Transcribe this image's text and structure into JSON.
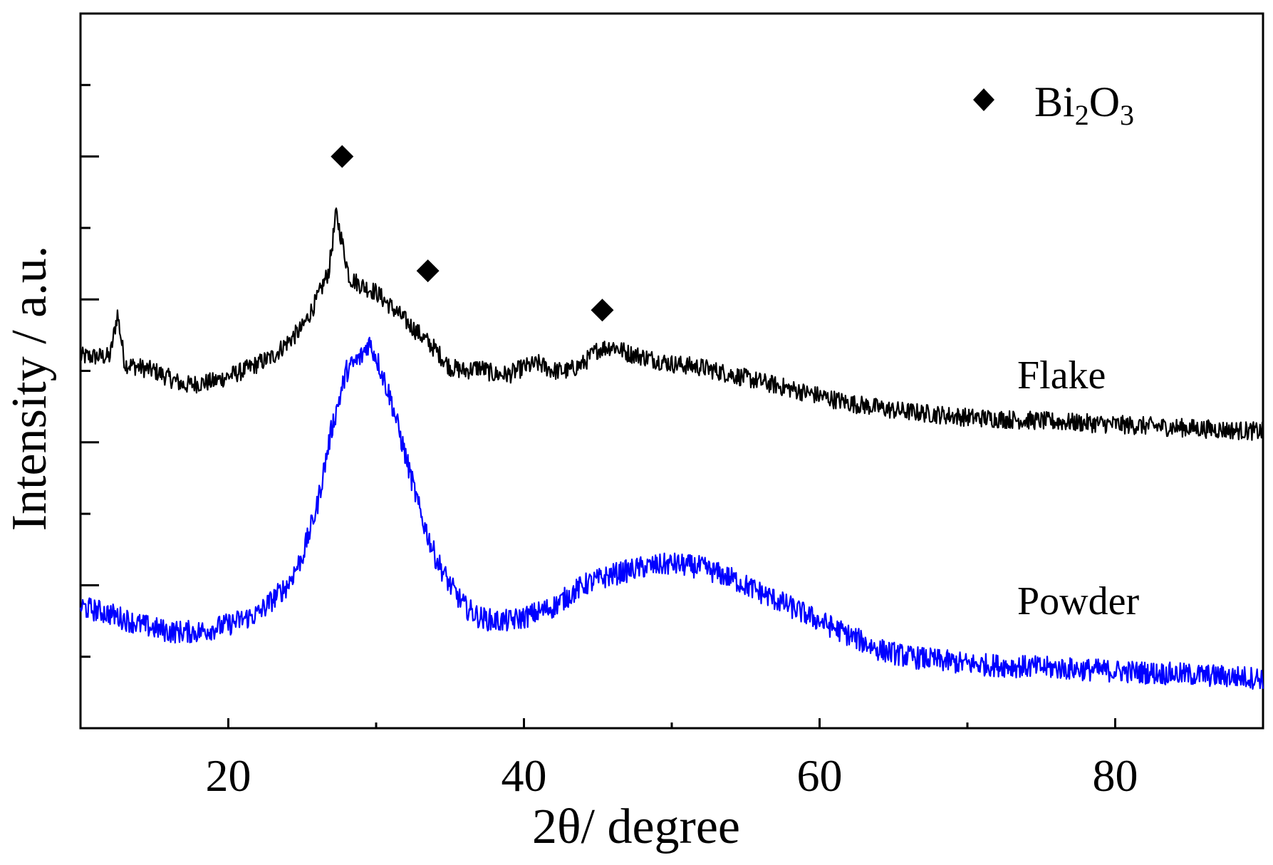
{
  "chart_data": {
    "type": "line",
    "title": "",
    "xlabel": "2θ/ degree",
    "ylabel": "Intensity / a.u.",
    "xlim": [
      10,
      90
    ],
    "ylim": [
      0,
      100
    ],
    "xticks": [
      20,
      40,
      60,
      80
    ],
    "xtick_labels": [
      "20",
      "40",
      "60",
      "80"
    ],
    "y_tick_labels_shown": false,
    "grid": false,
    "legend": {
      "placement": "top-right",
      "marker": "diamond",
      "label_main": "Bi",
      "label_sub1": "2",
      "label_mid": "O",
      "label_sub2": "3"
    },
    "series": [
      {
        "name": "Flake",
        "color": "#000000",
        "x": [
          10,
          12,
          12.5,
          13,
          15,
          17,
          19,
          21,
          23,
          25,
          26,
          26.8,
          27.3,
          27.7,
          28.2,
          29,
          30,
          31,
          32,
          33,
          34,
          35,
          36,
          37,
          38,
          39,
          40,
          41,
          42,
          43,
          44,
          45,
          46,
          47,
          48,
          50,
          52,
          54,
          56,
          58,
          60,
          62,
          65,
          70,
          75,
          80,
          85,
          90
        ],
        "values": [
          52,
          52,
          58,
          51,
          50,
          48,
          48.5,
          50,
          52,
          56,
          60,
          64,
          72,
          68,
          63,
          62,
          61,
          59,
          57,
          55,
          53,
          50.5,
          50,
          50.5,
          49.5,
          49.5,
          50.5,
          51,
          50,
          50,
          51,
          53,
          53.5,
          52.5,
          52,
          51,
          50.5,
          49.5,
          48.5,
          47.5,
          46.5,
          45.5,
          44.5,
          43.5,
          43,
          42.5,
          42,
          41.5
        ]
      },
      {
        "name": "Powder",
        "color": "#0000ff",
        "x": [
          10,
          12,
          14,
          16,
          18,
          20,
          22,
          24,
          25,
          26,
          27,
          28,
          29,
          29.5,
          30,
          31,
          32,
          33,
          34,
          35,
          36,
          37,
          38,
          39,
          40,
          42,
          44,
          46,
          48,
          50,
          52,
          54,
          56,
          58,
          60,
          62,
          64,
          66,
          68,
          70,
          75,
          80,
          85,
          90
        ],
        "values": [
          17,
          16,
          14.5,
          13.5,
          13.5,
          14.5,
          16,
          20,
          24,
          31,
          42,
          50,
          52,
          54,
          52,
          46,
          38,
          30,
          24,
          20,
          17,
          15.5,
          15,
          15,
          15.5,
          17,
          20,
          21.5,
          22.5,
          23,
          22.5,
          21,
          19,
          17,
          15,
          13,
          11,
          10,
          9.5,
          9,
          8.5,
          8,
          7.5,
          7
        ]
      }
    ],
    "annotations": [
      {
        "marker": "diamond",
        "x": 27.7,
        "y": 80
      },
      {
        "marker": "diamond",
        "x": 33.5,
        "y": 64
      },
      {
        "marker": "diamond",
        "x": 45.3,
        "y": 58.5
      }
    ]
  }
}
